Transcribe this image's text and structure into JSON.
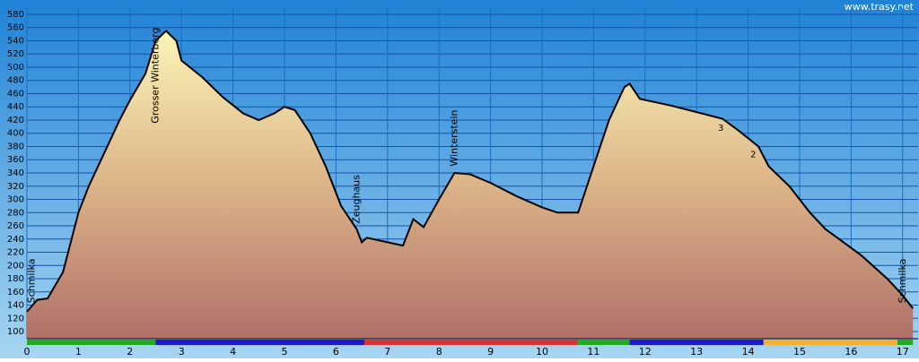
{
  "chart_data": {
    "type": "area",
    "watermark": "www.trasy.net",
    "x": [
      0,
      0.2,
      0.4,
      0.7,
      1.0,
      1.2,
      1.5,
      1.8,
      2.0,
      2.3,
      2.5,
      2.7,
      2.9,
      3.0,
      3.4,
      3.8,
      4.2,
      4.5,
      4.8,
      5.0,
      5.2,
      5.5,
      5.8,
      6.1,
      6.4,
      6.5,
      6.6,
      7.0,
      7.3,
      7.5,
      7.7,
      8.0,
      8.3,
      8.6,
      9.0,
      9.5,
      10.0,
      10.3,
      10.7,
      11.0,
      11.3,
      11.6,
      11.7,
      11.9,
      12.5,
      13.0,
      13.5,
      13.8,
      14.2,
      14.4,
      14.8,
      15.2,
      15.5,
      15.8,
      16.2,
      16.7,
      17.0,
      17.2
    ],
    "values": [
      130,
      148,
      150,
      190,
      280,
      320,
      370,
      420,
      450,
      490,
      540,
      555,
      540,
      510,
      485,
      455,
      430,
      420,
      430,
      440,
      435,
      400,
      350,
      290,
      255,
      235,
      242,
      235,
      230,
      270,
      258,
      300,
      340,
      338,
      325,
      305,
      288,
      280,
      280,
      350,
      420,
      470,
      475,
      452,
      442,
      432,
      422,
      405,
      380,
      350,
      320,
      280,
      255,
      238,
      215,
      180,
      155,
      135
    ],
    "xlim": [
      0,
      17.3
    ],
    "ylim": [
      90,
      590
    ],
    "xticks": [
      0,
      1,
      2,
      3,
      4,
      5,
      6,
      7,
      8,
      9,
      10,
      11,
      12,
      13,
      14,
      15,
      16,
      17
    ],
    "yticks": [
      100,
      120,
      140,
      160,
      180,
      200,
      220,
      240,
      260,
      280,
      300,
      320,
      340,
      360,
      380,
      400,
      420,
      440,
      460,
      480,
      500,
      520,
      540,
      560,
      580
    ],
    "grid": true,
    "line_color": "#000000",
    "segments": [
      {
        "color": "#22aa22",
        "from": 0,
        "to": 2.5
      },
      {
        "color": "#1a1acc",
        "from": 2.5,
        "to": 6.55
      },
      {
        "color": "#dd3333",
        "from": 6.55,
        "to": 10.7
      },
      {
        "color": "#22aa22",
        "from": 10.7,
        "to": 11.7
      },
      {
        "color": "#1a1acc",
        "from": 11.7,
        "to": 14.3
      },
      {
        "color": "#f4b030",
        "from": 14.3,
        "to": 16.9
      },
      {
        "color": "#22aa22",
        "from": 16.9,
        "to": 17.2
      }
    ],
    "annotations": [
      {
        "text": "Schmilka",
        "x": 0.1,
        "y": 143
      },
      {
        "text": "Grosser Winterberg",
        "x": 2.5,
        "y": 415
      },
      {
        "text": "Zeughaus",
        "x": 6.4,
        "y": 263
      },
      {
        "text": "Winterstein",
        "x": 8.3,
        "y": 350
      },
      {
        "text": "Schmilka",
        "x": 17.0,
        "y": 143
      },
      {
        "text": "3",
        "x": 13.47,
        "y": 408
      },
      {
        "text": "2",
        "x": 14.1,
        "y": 368
      }
    ]
  }
}
